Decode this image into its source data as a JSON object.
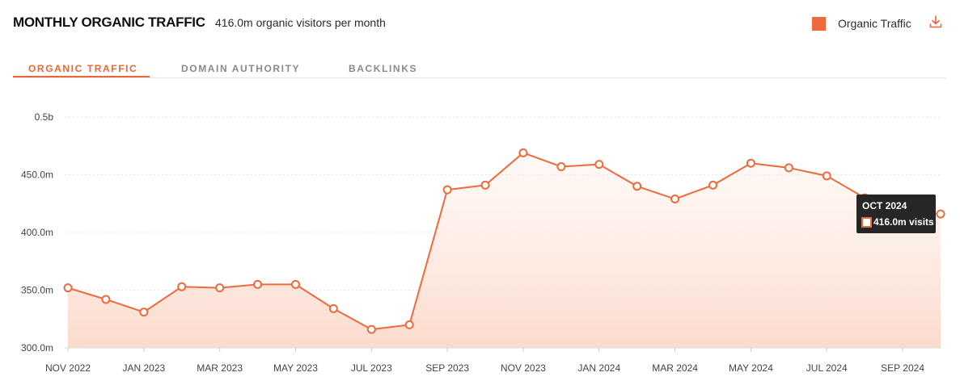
{
  "header": {
    "title": "MONTHLY ORGANIC TRAFFIC",
    "subtitle": "416.0m organic visitors per month",
    "legend_label": "Organic Traffic"
  },
  "tabs": [
    {
      "label": "ORGANIC TRAFFIC",
      "active": true
    },
    {
      "label": "DOMAIN AUTHORITY",
      "active": false
    },
    {
      "label": "BACKLINKS",
      "active": false
    }
  ],
  "colors": {
    "accent": "#e8683a",
    "line": "#ef6a3a",
    "tooltip_bg": "#262626"
  },
  "icons": {
    "download": "download-icon",
    "legend": "legend-swatch"
  },
  "tooltip": {
    "date": "OCT 2024",
    "value": "416.0m visits"
  },
  "chart_data": {
    "type": "area",
    "x": [
      "Nov 2022",
      "Dec 2022",
      "Jan 2023",
      "Feb 2023",
      "Mar 2023",
      "Apr 2023",
      "May 2023",
      "Jun 2023",
      "Jul 2023",
      "Aug 2023",
      "Sep 2023",
      "Oct 2023",
      "Nov 2023",
      "Dec 2023",
      "Jan 2024",
      "Feb 2024",
      "Mar 2024",
      "Apr 2024",
      "May 2024",
      "Jun 2024",
      "Jul 2024",
      "Aug 2024",
      "Sep 2024",
      "Oct 2024"
    ],
    "x_tick_labels": [
      "NOV 2022",
      "JAN 2023",
      "MAR 2023",
      "MAY 2023",
      "JUL 2023",
      "SEP 2023",
      "NOV 2023",
      "JAN 2024",
      "MAR 2024",
      "MAY 2024",
      "JUL 2024",
      "SEP 2024"
    ],
    "y_tick_labels": [
      "300.0m",
      "350.0m",
      "400.0m",
      "450.0m",
      "0.5b"
    ],
    "y_tick_values": [
      300,
      350,
      400,
      450,
      500
    ],
    "ylim": [
      300,
      500
    ],
    "y_unit": "millions of visits",
    "series": [
      {
        "name": "Organic Traffic",
        "values": [
          352,
          342,
          331,
          353,
          352,
          355,
          355,
          334,
          316,
          320,
          437,
          441,
          469,
          457,
          459,
          440,
          429,
          441,
          460,
          456,
          449,
          430,
          418,
          416
        ]
      }
    ],
    "grid": true,
    "legend_position": "top-right"
  }
}
